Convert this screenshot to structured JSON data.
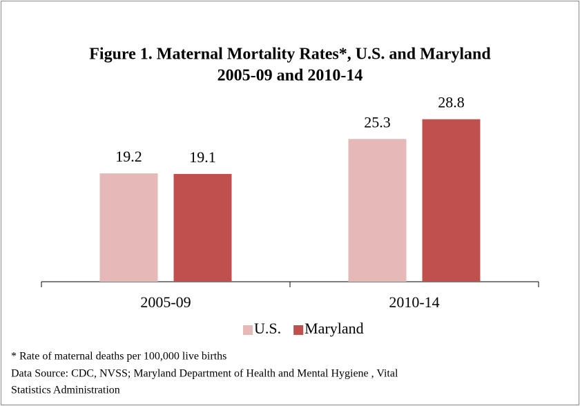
{
  "chart_data": {
    "type": "bar",
    "title": [
      "Figure 1. Maternal Mortality Rates*, U.S. and Maryland",
      "2005-09 and 2010-14"
    ],
    "categories": [
      "2005-09",
      "2010-14"
    ],
    "series": [
      {
        "name": "U.S.",
        "color": "#e6b8b7",
        "values": [
          19.2,
          25.3
        ]
      },
      {
        "name": "Maryland",
        "color": "#c0504d",
        "values": [
          19.1,
          28.8
        ]
      }
    ],
    "ylim": [
      0,
      35
    ],
    "legend": "bottom",
    "notes": [
      "* Rate of maternal deaths per 100,000 live births",
      "Data Source: CDC, NVSS; Maryland Department of Health and Mental Hygiene , Vital",
      "Statistics Administration"
    ]
  }
}
